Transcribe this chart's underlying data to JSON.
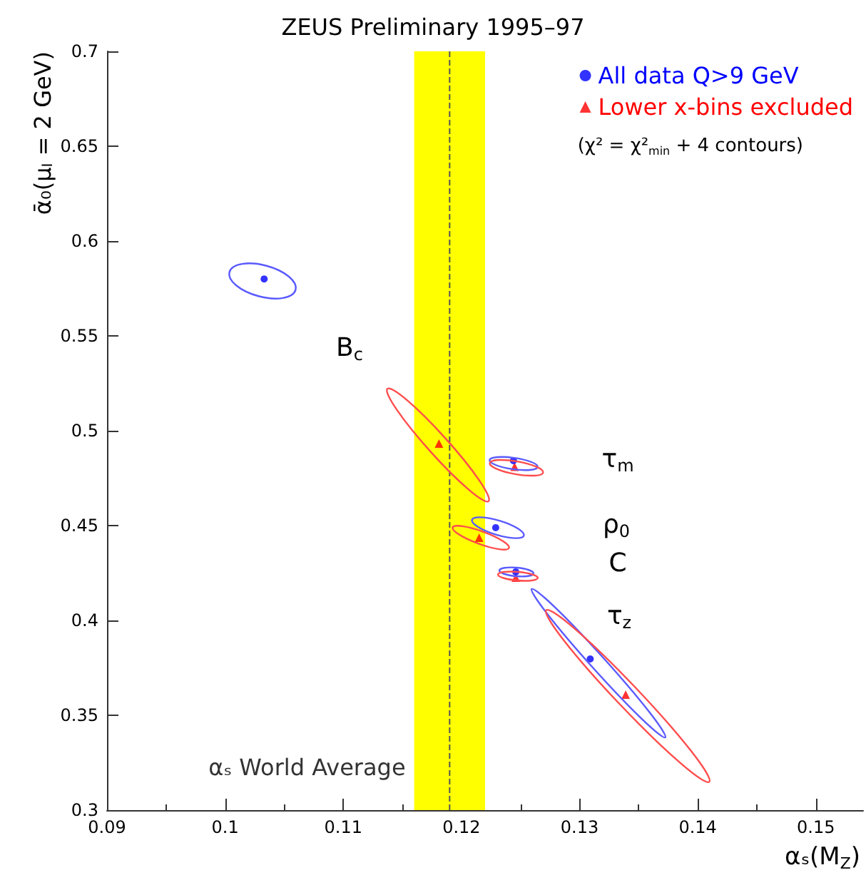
{
  "chart_data": {
    "type": "scatter",
    "title": "ZEUS Preliminary 1995–97",
    "xlabel": "αₛ(M$_{Z}$)",
    "ylabel": "ᾱ₀(μ$_{I}$ = 2 GeV)",
    "xlim": [
      0.09,
      0.154
    ],
    "ylim": [
      0.3,
      0.7
    ],
    "xticks": [
      0.09,
      0.1,
      0.11,
      0.12,
      0.13,
      0.14,
      0.15
    ],
    "yticks": [
      0.3,
      0.35,
      0.4,
      0.45,
      0.5,
      0.55,
      0.6,
      0.65,
      0.7
    ],
    "grid": false,
    "legend": "top right",
    "series": [
      {
        "name": "All data Q>9 GeV",
        "marker": "circle",
        "color": "#0000ff",
        "x": [
          0.1033,
          0.1244,
          0.1229,
          0.1246,
          0.1309
        ],
        "values": [
          0.58,
          0.4842,
          0.4489,
          0.4256,
          0.3797
        ]
      },
      {
        "name": "Lower x-bins excluded",
        "marker": "triangle",
        "color": "#ff0000",
        "x": [
          0.1181,
          0.1245,
          0.1215,
          0.1246,
          0.1339
        ],
        "values": [
          0.4932,
          0.481,
          0.4436,
          0.4226,
          0.3609
        ]
      }
    ],
    "bands": [
      {
        "axis": "x",
        "from": 0.116,
        "to": 0.122,
        "label": "αₛ World Average",
        "color": "#ffff00"
      }
    ],
    "ref_lines": [
      {
        "axis": "x",
        "value": 0.119,
        "line_style": "dashed",
        "color": "#555555"
      }
    ],
    "annotations": [
      "B$_{c}$",
      "τ$_{m}$",
      "ρ$_{0}$",
      "C",
      "τ$_{z}$",
      "(χ² = χ²$_{min}$ + 4 contours)"
    ]
  }
}
